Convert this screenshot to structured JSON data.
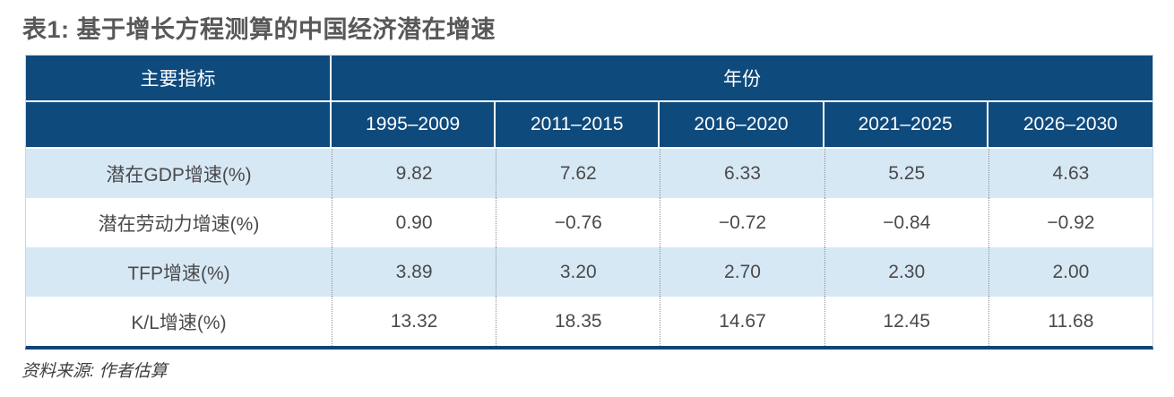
{
  "title": "表1: 基于增长方程测算的中国经济潜在增速",
  "table": {
    "indicator_header": "主要指标",
    "year_group_header": "年份",
    "year_columns": [
      "1995–2009",
      "2011–2015",
      "2016–2020",
      "2021–2025",
      "2026–2030"
    ],
    "rows": [
      {
        "label": "潜在GDP增速(%)",
        "values": [
          "9.82",
          "7.62",
          "6.33",
          "5.25",
          "4.63"
        ]
      },
      {
        "label": "潜在劳动力增速(%)",
        "values": [
          "0.90",
          "−0.76",
          "−0.72",
          "−0.84",
          "−0.92"
        ]
      },
      {
        "label": "TFP增速(%)",
        "values": [
          "3.89",
          "3.20",
          "2.70",
          "2.30",
          "2.00"
        ]
      },
      {
        "label": "K/L增速(%)",
        "values": [
          "13.32",
          "18.35",
          "14.67",
          "12.45",
          "11.68"
        ]
      }
    ]
  },
  "source_note": "资料来源: 作者估算",
  "colors": {
    "header_blue": "#0f4a7d",
    "row_light_blue": "#d7e8f5",
    "bottom_border_blue": "#0e4577",
    "title_gray": "#595757",
    "body_text_gray": "#4a4a4a"
  },
  "chart_data": {
    "type": "table",
    "title": "表1: 基于增长方程测算的中国经济潜在增速",
    "categories": [
      "1995–2009",
      "2011–2015",
      "2016–2020",
      "2021–2025",
      "2026–2030"
    ],
    "series": [
      {
        "name": "潜在GDP增速(%)",
        "values": [
          9.82,
          7.62,
          6.33,
          5.25,
          4.63
        ]
      },
      {
        "name": "潜在劳动力增速(%)",
        "values": [
          0.9,
          -0.76,
          -0.72,
          -0.84,
          -0.92
        ]
      },
      {
        "name": "TFP增速(%)",
        "values": [
          3.89,
          3.2,
          2.7,
          2.3,
          2.0
        ]
      },
      {
        "name": "K/L增速(%)",
        "values": [
          13.32,
          18.35,
          14.67,
          12.45,
          11.68
        ]
      }
    ],
    "source": "资料来源: 作者估算"
  }
}
